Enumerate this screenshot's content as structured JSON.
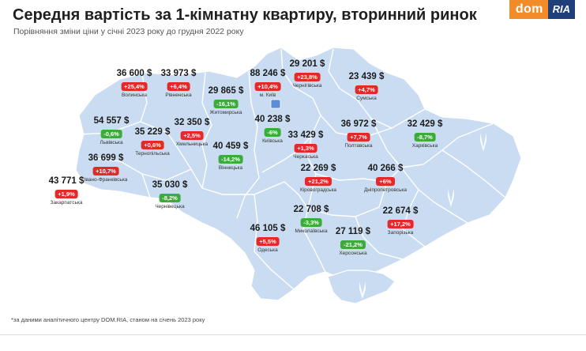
{
  "header": {
    "title": "Середня вартість за 1-кімнатну квартиру, вторинний ринок",
    "subtitle": "Порівняння зміни ціни у січні 2023 року до грудня 2022 року"
  },
  "logo": {
    "dom": "dom",
    "ria": "RIA"
  },
  "colors": {
    "map_fill": "#c9dcf2",
    "map_border": "#ffffff",
    "increase": "#e42929",
    "decrease": "#3cab3c",
    "logo_orange": "#f28c28",
    "logo_navy": "#1e3f7a"
  },
  "regions": [
    {
      "id": "volyn",
      "price": "36 600 $",
      "change": "+25,4%",
      "trend": "up",
      "name": "Волинська"
    },
    {
      "id": "rivne",
      "price": "33 973 $",
      "change": "+6,4%",
      "trend": "up",
      "name": "Рівненська"
    },
    {
      "id": "zhytomyr",
      "price": "29 865 $",
      "change": "-16,1%",
      "trend": "down",
      "name": "Житомирська"
    },
    {
      "id": "kyiv-city",
      "price": "88 246 $",
      "change": "+10,4%",
      "trend": "up",
      "name": "м. Київ"
    },
    {
      "id": "chernihiv",
      "price": "29 201 $",
      "change": "+23,8%",
      "trend": "up",
      "name": "Чернігівська"
    },
    {
      "id": "sumy",
      "price": "23 439 $",
      "change": "+4,7%",
      "trend": "up",
      "name": "Сумська"
    },
    {
      "id": "lviv",
      "price": "54 557 $",
      "change": "-0,6%",
      "trend": "down",
      "name": "Львівська"
    },
    {
      "id": "ternopil",
      "price": "35 229 $",
      "change": "+0,6%",
      "trend": "up",
      "name": "Тернопільська"
    },
    {
      "id": "khmelnytskyi",
      "price": "32 350 $",
      "change": "+2,5%",
      "trend": "up",
      "name": "Хмельницька"
    },
    {
      "id": "kyiv-oblast",
      "price": "40 238 $",
      "change": "-6%",
      "trend": "down",
      "name": "Київська"
    },
    {
      "id": "poltava",
      "price": "36 972 $",
      "change": "+7,7%",
      "trend": "up",
      "name": "Полтавська"
    },
    {
      "id": "kharkiv",
      "price": "32 429 $",
      "change": "-8,7%",
      "trend": "down",
      "name": "Харківська"
    },
    {
      "id": "cherkasy",
      "price": "33 429 $",
      "change": "+1,3%",
      "trend": "up",
      "name": "Черкаська"
    },
    {
      "id": "vinnytsia",
      "price": "40 459 $",
      "change": "-14,2%",
      "trend": "down",
      "name": "Вінницька"
    },
    {
      "id": "ivano-frankivsk",
      "price": "36 699 $",
      "change": "+10,7%",
      "trend": "up",
      "name": "Івано-Франківська"
    },
    {
      "id": "zakarpattia",
      "price": "43 771 $",
      "change": "+1,9%",
      "trend": "up",
      "name": "Закарпатська"
    },
    {
      "id": "chernivtsi",
      "price": "35 030 $",
      "change": "-8,2%",
      "trend": "down",
      "name": "Чернівецька"
    },
    {
      "id": "kirovohrad",
      "price": "22 269 $",
      "change": "+21,2%",
      "trend": "up",
      "name": "Кіровоградська"
    },
    {
      "id": "dnipro",
      "price": "40 266 $",
      "change": "+6%",
      "trend": "up",
      "name": "Дніпропетровська"
    },
    {
      "id": "odesa",
      "price": "46 105 $",
      "change": "+5,5%",
      "trend": "up",
      "name": "Одеська"
    },
    {
      "id": "mykolaiv",
      "price": "22 708 $",
      "change": "-3,3%",
      "trend": "down",
      "name": "Миколаївська"
    },
    {
      "id": "kherson",
      "price": "27 119 $",
      "change": "-21,2%",
      "trend": "down",
      "name": "Херсонська"
    },
    {
      "id": "zaporizhzhia",
      "price": "22 674 $",
      "change": "+17,2%",
      "trend": "up",
      "name": "Запорізька"
    }
  ],
  "footnote": "*за даними аналітичного центру DOM.RIA, станом на січень 2023 року"
}
